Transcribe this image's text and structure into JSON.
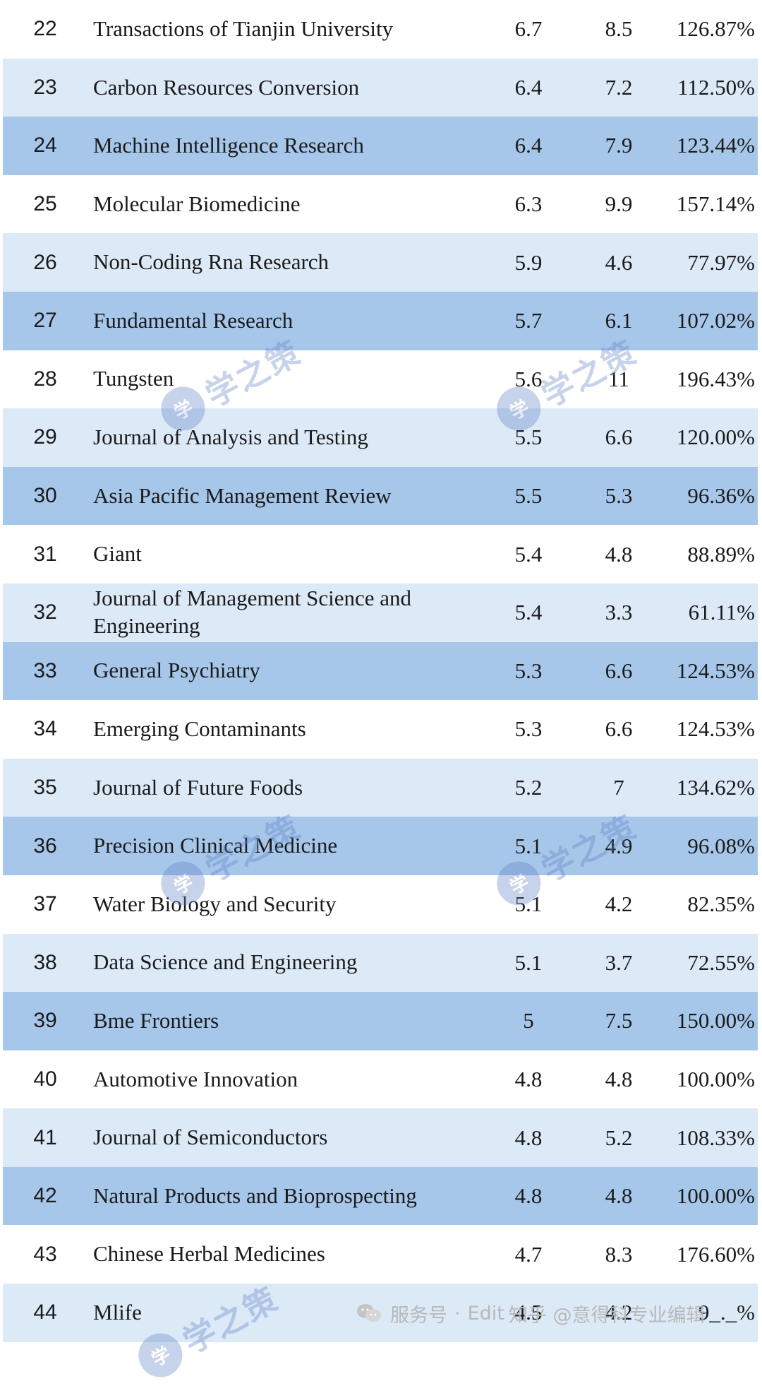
{
  "rows": [
    {
      "rank": "22",
      "name": "Transactions of Tianjin University",
      "v1": "6.7",
      "v2": "8.5",
      "pct": "126.87%",
      "shade": "white"
    },
    {
      "rank": "23",
      "name": "Carbon Resources Conversion",
      "v1": "6.4",
      "v2": "7.2",
      "pct": "112.50%",
      "shade": "light"
    },
    {
      "rank": "24",
      "name": "Machine Intelligence Research",
      "v1": "6.4",
      "v2": "7.9",
      "pct": "123.44%",
      "shade": "medium"
    },
    {
      "rank": "25",
      "name": "Molecular Biomedicine",
      "v1": "6.3",
      "v2": "9.9",
      "pct": "157.14%",
      "shade": "white"
    },
    {
      "rank": "26",
      "name": "Non-Coding Rna Research",
      "v1": "5.9",
      "v2": "4.6",
      "pct": "77.97%",
      "shade": "light"
    },
    {
      "rank": "27",
      "name": "Fundamental Research",
      "v1": "5.7",
      "v2": "6.1",
      "pct": "107.02%",
      "shade": "medium"
    },
    {
      "rank": "28",
      "name": "Tungsten",
      "v1": "5.6",
      "v2": "11",
      "pct": "196.43%",
      "shade": "white"
    },
    {
      "rank": "29",
      "name": "Journal of Analysis and Testing",
      "v1": "5.5",
      "v2": "6.6",
      "pct": "120.00%",
      "shade": "light"
    },
    {
      "rank": "30",
      "name": "Asia Pacific Management Review",
      "v1": "5.5",
      "v2": "5.3",
      "pct": "96.36%",
      "shade": "medium"
    },
    {
      "rank": "31",
      "name": "Giant",
      "v1": "5.4",
      "v2": "4.8",
      "pct": "88.89%",
      "shade": "white"
    },
    {
      "rank": "32",
      "name": "Journal of Management Science and Engineering",
      "v1": "5.4",
      "v2": "3.3",
      "pct": "61.11%",
      "shade": "light"
    },
    {
      "rank": "33",
      "name": "General Psychiatry",
      "v1": "5.3",
      "v2": "6.6",
      "pct": "124.53%",
      "shade": "medium"
    },
    {
      "rank": "34",
      "name": "Emerging Contaminants",
      "v1": "5.3",
      "v2": "6.6",
      "pct": "124.53%",
      "shade": "white"
    },
    {
      "rank": "35",
      "name": "Journal of Future Foods",
      "v1": "5.2",
      "v2": "7",
      "pct": "134.62%",
      "shade": "light"
    },
    {
      "rank": "36",
      "name": "Precision Clinical Medicine",
      "v1": "5.1",
      "v2": "4.9",
      "pct": "96.08%",
      "shade": "medium"
    },
    {
      "rank": "37",
      "name": "Water Biology and Security",
      "v1": "5.1",
      "v2": "4.2",
      "pct": "82.35%",
      "shade": "white"
    },
    {
      "rank": "38",
      "name": "Data Science and Engineering",
      "v1": "5.1",
      "v2": "3.7",
      "pct": "72.55%",
      "shade": "light"
    },
    {
      "rank": "39",
      "name": "Bme Frontiers",
      "v1": "5",
      "v2": "7.5",
      "pct": "150.00%",
      "shade": "medium"
    },
    {
      "rank": "40",
      "name": "Automotive Innovation",
      "v1": "4.8",
      "v2": "4.8",
      "pct": "100.00%",
      "shade": "white"
    },
    {
      "rank": "41",
      "name": "Journal of Semiconductors",
      "v1": "4.8",
      "v2": "5.2",
      "pct": "108.33%",
      "shade": "light"
    },
    {
      "rank": "42",
      "name": "Natural Products and Bioprospecting",
      "v1": "4.8",
      "v2": "4.8",
      "pct": "100.00%",
      "shade": "medium"
    },
    {
      "rank": "43",
      "name": "Chinese Herbal Medicines",
      "v1": "4.7",
      "v2": "8.3",
      "pct": "176.60%",
      "shade": "white"
    },
    {
      "rank": "44",
      "name": "Mlife",
      "v1": "4.5",
      "v2": "4.2",
      "pct": "9_._%",
      "shade": "light"
    }
  ],
  "watermark": {
    "text": "学之策",
    "seal": "学"
  },
  "footer": {
    "service": "服务号",
    "separator": "·",
    "account": "Edit",
    "zhihu": "知乎 @意得科专业编辑"
  },
  "colors": {
    "white_row": "#ffffff",
    "light_row": "#dce9f7",
    "medium_row": "#a7c7ea",
    "watermark": "#5f82c4"
  }
}
